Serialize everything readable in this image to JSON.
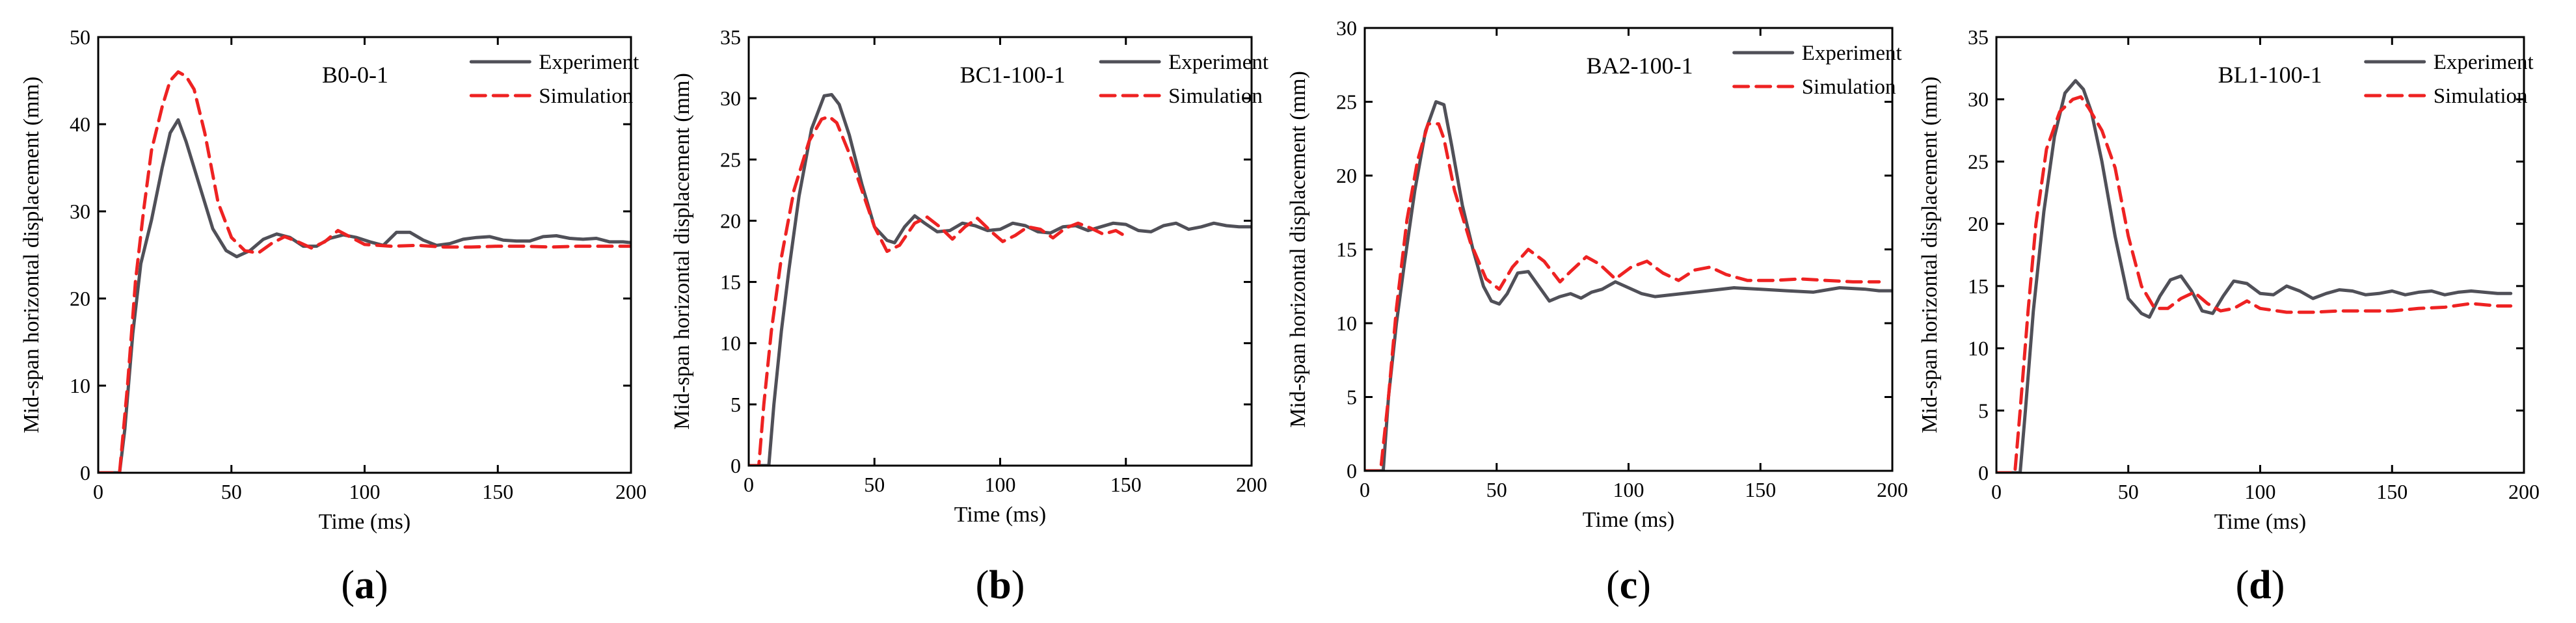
{
  "figure": {
    "colors": {
      "experiment": "#505058",
      "simulation": "#ee2222",
      "axis": "#000000"
    }
  },
  "chart_data": [
    {
      "type": "line",
      "panel_label": "a",
      "specimen": "B0-0-1",
      "xlabel": "Time (ms)",
      "ylabel": "Mid-span horizontal displacement (mm)",
      "xlim": [
        0,
        200
      ],
      "ylim": [
        0,
        50
      ],
      "xticks": [
        0,
        50,
        100,
        150,
        200
      ],
      "yticks": [
        0,
        10,
        20,
        30,
        40,
        50
      ],
      "legend": "top-right",
      "series": [
        {
          "name": "Experiment",
          "style": "solid",
          "x": [
            0,
            8,
            10,
            13,
            16,
            20,
            24,
            27,
            30,
            33,
            38,
            43,
            48,
            52,
            57,
            62,
            67,
            72,
            77,
            82,
            87,
            92,
            97,
            102,
            107,
            112,
            117,
            122,
            127,
            132,
            137,
            142,
            147,
            152,
            157,
            162,
            167,
            172,
            177,
            182,
            187,
            192,
            197,
            200
          ],
          "y": [
            0,
            0,
            5,
            16,
            24,
            29,
            35,
            39,
            40.5,
            38,
            33,
            28,
            25.5,
            24.8,
            25.5,
            26.8,
            27.4,
            27,
            26,
            26,
            26.9,
            27.3,
            27,
            26.5,
            26.1,
            27.6,
            27.6,
            26.7,
            26.1,
            26.3,
            26.8,
            27,
            27.1,
            26.7,
            26.6,
            26.6,
            27.1,
            27.2,
            26.9,
            26.8,
            26.9,
            26.5,
            26.5,
            26.4
          ]
        },
        {
          "name": "Simulation",
          "style": "dashed",
          "x": [
            0,
            8,
            11,
            14,
            17,
            20,
            24,
            27,
            30,
            33,
            36,
            40,
            45,
            50,
            55,
            60,
            65,
            70,
            75,
            80,
            85,
            90,
            95,
            100,
            110,
            120,
            130,
            140,
            150,
            160,
            170,
            180,
            190,
            200
          ],
          "y": [
            0,
            0,
            10,
            22,
            30,
            37,
            42,
            45,
            46,
            45.5,
            44,
            39,
            31,
            27,
            25.5,
            25.2,
            26.3,
            27.1,
            26.5,
            25.8,
            26.5,
            27.8,
            27,
            26.2,
            26,
            26.1,
            25.9,
            25.9,
            26,
            26,
            25.9,
            26,
            26,
            26
          ]
        }
      ]
    },
    {
      "type": "line",
      "panel_label": "b",
      "specimen": "BC1-100-1",
      "xlabel": "Time (ms)",
      "ylabel": "Mid-span horizontal displacement (mm)",
      "xlim": [
        0,
        200
      ],
      "ylim": [
        0,
        35
      ],
      "xticks": [
        0,
        50,
        100,
        150,
        200
      ],
      "yticks": [
        0,
        5,
        10,
        15,
        20,
        25,
        30,
        35
      ],
      "legend": "top-right",
      "series": [
        {
          "name": "Experiment",
          "style": "solid",
          "x": [
            0,
            8,
            10,
            13,
            16,
            20,
            25,
            30,
            33,
            36,
            40,
            45,
            50,
            55,
            58,
            62,
            66,
            70,
            75,
            80,
            85,
            90,
            95,
            100,
            105,
            110,
            115,
            120,
            125,
            130,
            135,
            140,
            145,
            150,
            155,
            160,
            165,
            170,
            175,
            180,
            185,
            190,
            195,
            200
          ],
          "y": [
            0,
            0,
            5,
            11,
            16,
            22,
            27.5,
            30.2,
            30.3,
            29.5,
            27,
            23,
            19.5,
            18.4,
            18.2,
            19.5,
            20.4,
            19.8,
            19.1,
            19.2,
            19.8,
            19.6,
            19.2,
            19.3,
            19.8,
            19.6,
            19.1,
            19,
            19.5,
            19.6,
            19.2,
            19.5,
            19.8,
            19.7,
            19.2,
            19.1,
            19.6,
            19.8,
            19.3,
            19.5,
            19.8,
            19.6,
            19.5,
            19.5
          ]
        },
        {
          "name": "Simulation",
          "style": "dashed",
          "x": [
            0,
            4,
            6,
            9,
            13,
            18,
            24,
            29,
            32,
            35,
            40,
            45,
            50,
            55,
            60,
            66,
            71,
            76,
            81,
            86,
            91,
            96,
            101,
            106,
            111,
            116,
            121,
            126,
            131,
            136,
            141,
            146,
            151
          ],
          "y": [
            0,
            0,
            5,
            11,
            17,
            22.5,
            26.5,
            28.3,
            28.5,
            28,
            25.5,
            22.5,
            19.5,
            17.5,
            18,
            19.8,
            20.3,
            19.5,
            18.5,
            19.5,
            20.2,
            19.2,
            18.3,
            18.8,
            19.5,
            19.3,
            18.6,
            19.4,
            19.8,
            19.4,
            18.9,
            19.2,
            18.6
          ]
        }
      ]
    },
    {
      "type": "line",
      "panel_label": "c",
      "specimen": "BA2-100-1",
      "xlabel": "Time (ms)",
      "ylabel": "Mid-span horizontal displacement (mm)",
      "xlim": [
        0,
        200
      ],
      "ylim": [
        0,
        30
      ],
      "xticks": [
        0,
        50,
        100,
        150,
        200
      ],
      "yticks": [
        0,
        5,
        10,
        15,
        20,
        25,
        30
      ],
      "legend": "top-right",
      "series": [
        {
          "name": "Experiment",
          "style": "solid",
          "x": [
            0,
            7,
            9,
            12,
            15,
            19,
            23,
            27,
            30,
            33,
            37,
            41,
            45,
            48,
            51,
            54,
            58,
            62,
            66,
            70,
            74,
            78,
            82,
            86,
            90,
            95,
            100,
            105,
            110,
            115,
            120,
            130,
            140,
            150,
            160,
            170,
            180,
            190,
            195,
            200
          ],
          "y": [
            0,
            0,
            5,
            10,
            14,
            19,
            23,
            25,
            24.8,
            22,
            18,
            15,
            12.5,
            11.5,
            11.3,
            12,
            13.4,
            13.5,
            12.5,
            11.5,
            11.8,
            12,
            11.7,
            12.1,
            12.3,
            12.8,
            12.4,
            12,
            11.8,
            11.9,
            12,
            12.2,
            12.4,
            12.3,
            12.2,
            12.1,
            12.4,
            12.3,
            12.2,
            12.2
          ]
        },
        {
          "name": "Simulation",
          "style": "dashed",
          "x": [
            0,
            6,
            9,
            12,
            16,
            20,
            24,
            28,
            30,
            34,
            40,
            46,
            51,
            56,
            62,
            68,
            74,
            78,
            84,
            89,
            95,
            101,
            107,
            113,
            119,
            125,
            131,
            137,
            145,
            155,
            165,
            175,
            185,
            195
          ],
          "y": [
            0,
            0,
            5,
            11,
            17,
            21,
            23.5,
            23.5,
            22.5,
            19,
            15.5,
            13,
            12.3,
            13.8,
            15,
            14.2,
            12.8,
            13.5,
            14.5,
            14,
            13,
            13.8,
            14.2,
            13.4,
            12.9,
            13.6,
            13.8,
            13.3,
            12.9,
            12.9,
            13,
            12.9,
            12.8,
            12.8
          ]
        }
      ]
    },
    {
      "type": "line",
      "panel_label": "d",
      "specimen": "BL1-100-1",
      "xlabel": "Time (ms)",
      "ylabel": "Mid-span horizontal displacement (mm)",
      "xlim": [
        0,
        200
      ],
      "ylim": [
        0,
        35
      ],
      "xticks": [
        0,
        50,
        100,
        150,
        200
      ],
      "yticks": [
        0,
        5,
        10,
        15,
        20,
        25,
        30,
        35
      ],
      "legend": "top-right",
      "series": [
        {
          "name": "Experiment",
          "style": "solid",
          "x": [
            0,
            9,
            11,
            14,
            18,
            22,
            26,
            30,
            33,
            36,
            40,
            45,
            50,
            55,
            58,
            62,
            66,
            70,
            74,
            78,
            82,
            86,
            90,
            95,
            100,
            105,
            110,
            115,
            120,
            125,
            130,
            135,
            140,
            145,
            150,
            155,
            160,
            165,
            170,
            175,
            180,
            185,
            190,
            195
          ],
          "y": [
            0,
            0,
            5,
            13,
            21,
            27,
            30.5,
            31.5,
            30.8,
            29,
            25,
            19,
            14,
            12.8,
            12.5,
            14.2,
            15.5,
            15.8,
            14.6,
            13,
            12.8,
            14.2,
            15.4,
            15.2,
            14.4,
            14.3,
            15,
            14.6,
            14,
            14.4,
            14.7,
            14.6,
            14.3,
            14.4,
            14.6,
            14.3,
            14.5,
            14.6,
            14.3,
            14.5,
            14.6,
            14.5,
            14.4,
            14.4
          ]
        },
        {
          "name": "Simulation",
          "style": "dashed",
          "x": [
            0,
            7,
            9,
            12,
            15,
            19,
            24,
            29,
            32,
            35,
            40,
            45,
            50,
            55,
            60,
            65,
            70,
            75,
            80,
            85,
            90,
            95,
            100,
            110,
            120,
            130,
            140,
            150,
            160,
            170,
            180,
            185,
            190,
            195
          ],
          "y": [
            0,
            0,
            5,
            13,
            20,
            26,
            29,
            30,
            30.2,
            29.3,
            27.5,
            24.5,
            19,
            15,
            13.2,
            13.2,
            14,
            14.5,
            13.6,
            13,
            13.2,
            13.8,
            13.2,
            12.9,
            12.9,
            13,
            13,
            13,
            13.2,
            13.3,
            13.6,
            13.5,
            13.4,
            13.4
          ]
        }
      ]
    }
  ]
}
